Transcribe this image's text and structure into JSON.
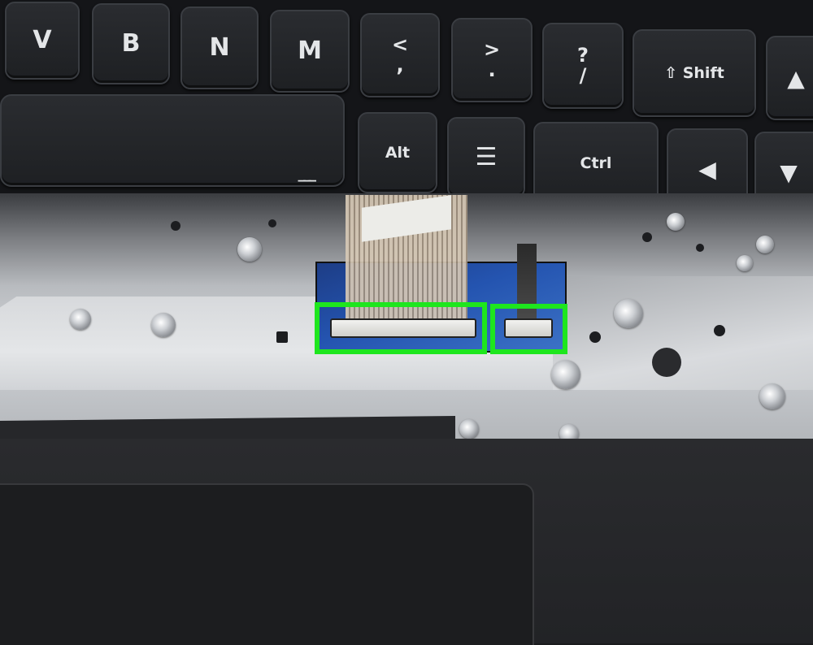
{
  "keyboard": {
    "keys": {
      "v": "V",
      "b": "B",
      "n": "N",
      "m": "M",
      "comma_top": "<",
      "comma_bottom": ",",
      "period_top": ">",
      "period_bottom": ".",
      "slash_top": "?",
      "slash_bottom": "/",
      "shift": "⇧ Shift",
      "alt": "Alt",
      "menu": "☰",
      "ctrl": "Ctrl",
      "arrow_up": "▲",
      "arrow_left": "◀",
      "arrow_down": "▼",
      "space": "___"
    }
  },
  "highlights": {
    "color": "#1ee61e",
    "items": [
      "keyboard-ribbon-connector",
      "backlight-cable-connector"
    ]
  }
}
